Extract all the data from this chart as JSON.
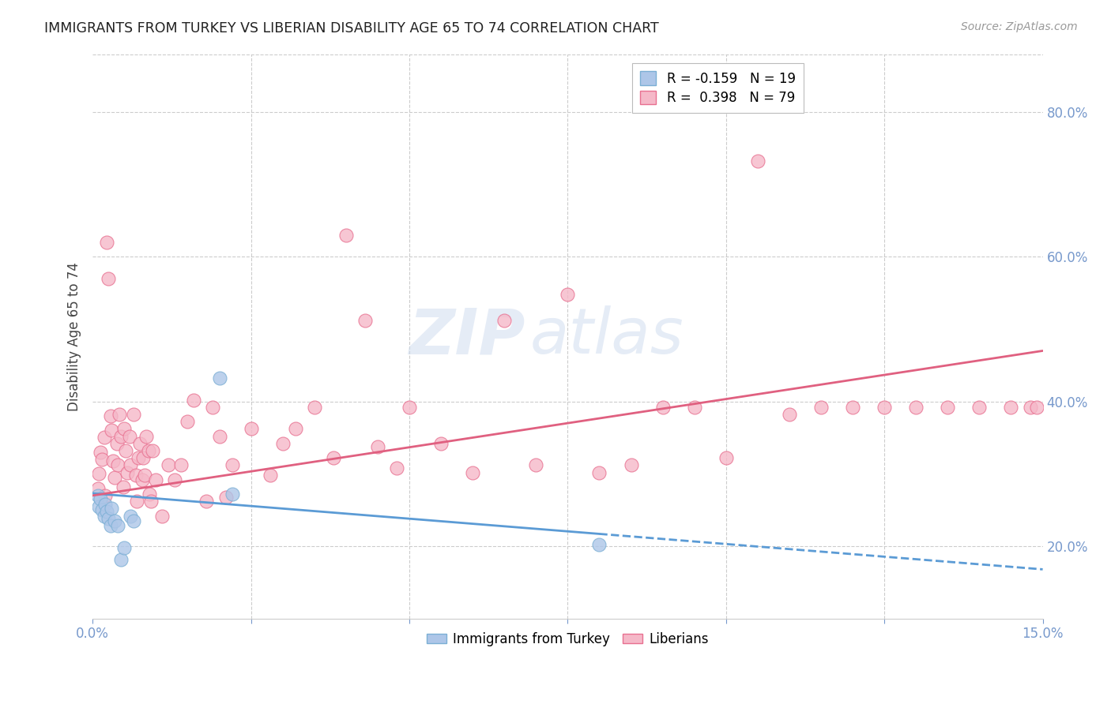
{
  "title": "IMMIGRANTS FROM TURKEY VS LIBERIAN DISABILITY AGE 65 TO 74 CORRELATION CHART",
  "source": "Source: ZipAtlas.com",
  "ylabel": "Disability Age 65 to 74",
  "xlim": [
    0.0,
    0.15
  ],
  "ylim": [
    0.1,
    0.88
  ],
  "xticks_labeled": [
    0.0,
    0.15
  ],
  "xticklabels": [
    "0.0%",
    "15.0%"
  ],
  "xticks_minor": [
    0.025,
    0.05,
    0.075,
    0.1,
    0.125
  ],
  "yticks": [
    0.2,
    0.4,
    0.6,
    0.8
  ],
  "yticklabels": [
    "20.0%",
    "40.0%",
    "60.0%",
    "80.0%"
  ],
  "watermark_zip": "ZIP",
  "watermark_atlas": "atlas",
  "legend_label_turkey": "R = -0.159   N = 19",
  "legend_label_liberian": "R =  0.398   N = 79",
  "turkey_color": "#adc6e8",
  "turkey_edge": "#7bafd4",
  "liberian_color": "#f5b8c8",
  "liberian_edge": "#e87090",
  "trend_turkey_color": "#5b9bd5",
  "trend_liberian_color": "#e06080",
  "background_color": "#ffffff",
  "grid_color": "#cccccc",
  "tick_color": "#7799cc",
  "title_color": "#222222",
  "source_color": "#999999",
  "ylabel_color": "#444444",
  "turkey_x": [
    0.0008,
    0.001,
    0.0012,
    0.0015,
    0.0018,
    0.002,
    0.0022,
    0.0025,
    0.0028,
    0.003,
    0.0035,
    0.004,
    0.0045,
    0.005,
    0.006,
    0.0065,
    0.02,
    0.022,
    0.08
  ],
  "turkey_y": [
    0.27,
    0.255,
    0.265,
    0.25,
    0.242,
    0.258,
    0.248,
    0.238,
    0.228,
    0.252,
    0.235,
    0.228,
    0.182,
    0.198,
    0.242,
    0.235,
    0.432,
    0.272,
    0.202
  ],
  "liberian_x": [
    0.0008,
    0.001,
    0.0012,
    0.0015,
    0.0018,
    0.002,
    0.0022,
    0.0025,
    0.0028,
    0.003,
    0.0032,
    0.0035,
    0.0038,
    0.004,
    0.0042,
    0.0045,
    0.0048,
    0.005,
    0.0052,
    0.0055,
    0.0058,
    0.006,
    0.0065,
    0.0068,
    0.007,
    0.0072,
    0.0075,
    0.0078,
    0.008,
    0.0082,
    0.0085,
    0.0088,
    0.009,
    0.0092,
    0.0095,
    0.01,
    0.011,
    0.012,
    0.013,
    0.014,
    0.015,
    0.016,
    0.018,
    0.019,
    0.02,
    0.021,
    0.022,
    0.025,
    0.028,
    0.03,
    0.032,
    0.035,
    0.038,
    0.04,
    0.043,
    0.045,
    0.048,
    0.05,
    0.055,
    0.06,
    0.065,
    0.07,
    0.075,
    0.08,
    0.085,
    0.09,
    0.095,
    0.1,
    0.105,
    0.11,
    0.115,
    0.12,
    0.125,
    0.13,
    0.135,
    0.14,
    0.145,
    0.148,
    0.149
  ],
  "liberian_y": [
    0.28,
    0.3,
    0.33,
    0.32,
    0.35,
    0.27,
    0.62,
    0.57,
    0.38,
    0.36,
    0.318,
    0.295,
    0.342,
    0.312,
    0.382,
    0.352,
    0.282,
    0.362,
    0.332,
    0.302,
    0.352,
    0.312,
    0.382,
    0.298,
    0.262,
    0.322,
    0.342,
    0.292,
    0.322,
    0.298,
    0.352,
    0.332,
    0.272,
    0.262,
    0.332,
    0.292,
    0.242,
    0.312,
    0.292,
    0.312,
    0.372,
    0.402,
    0.262,
    0.392,
    0.352,
    0.268,
    0.312,
    0.362,
    0.298,
    0.342,
    0.362,
    0.392,
    0.322,
    0.63,
    0.512,
    0.338,
    0.308,
    0.392,
    0.342,
    0.302,
    0.512,
    0.312,
    0.548,
    0.302,
    0.312,
    0.392,
    0.392,
    0.322,
    0.732,
    0.382,
    0.392,
    0.392,
    0.392,
    0.392,
    0.392,
    0.392,
    0.392,
    0.392,
    0.392
  ],
  "turkey_trend_x0": 0.0,
  "turkey_trend_x_solid_end": 0.08,
  "turkey_trend_x1": 0.15,
  "turkey_trend_y0": 0.273,
  "turkey_trend_y1": 0.168,
  "liberian_trend_x0": 0.0,
  "liberian_trend_x1": 0.15,
  "liberian_trend_y0": 0.27,
  "liberian_trend_y1": 0.47
}
